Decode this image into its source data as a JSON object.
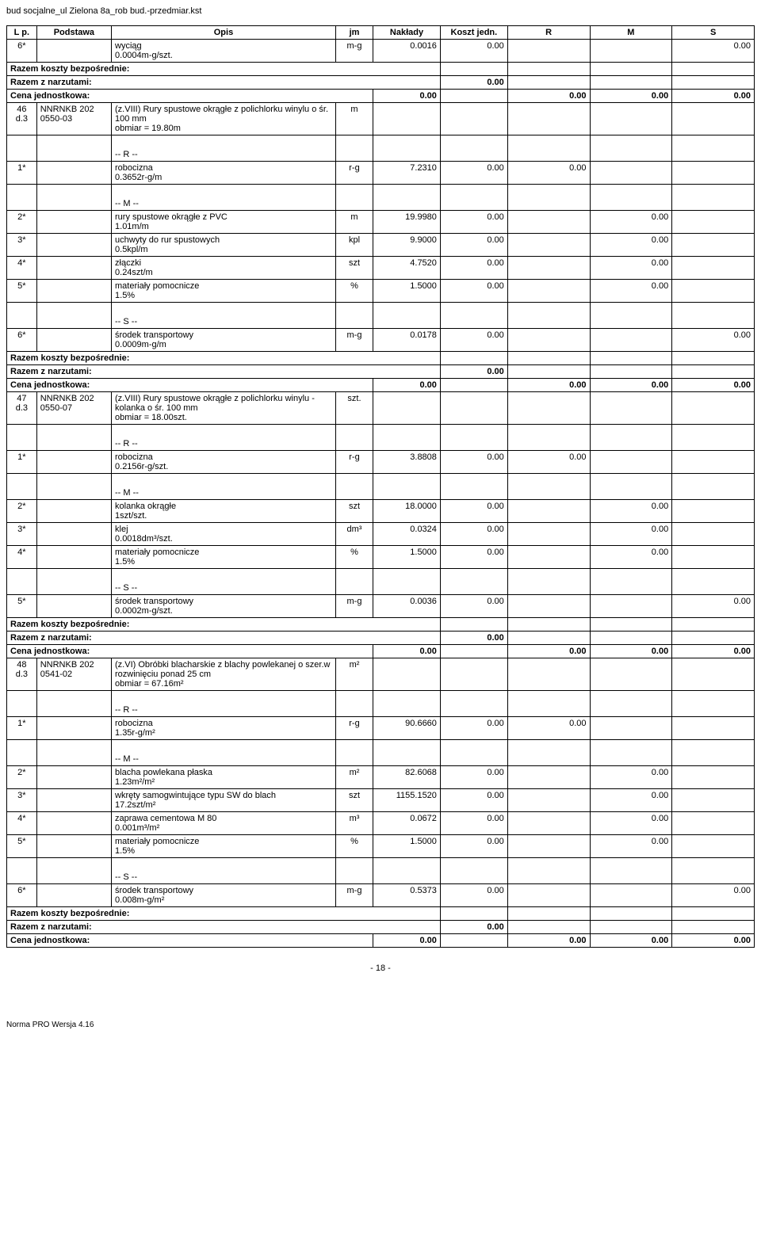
{
  "doc": {
    "title": "bud socjalne_ul Zielona 8a_rob bud.-przedmiar.kst",
    "pageNumber": "- 18 -",
    "footer": "Norma PRO Wersja 4.16"
  },
  "header": {
    "lp": "L p.",
    "podstawa": "Podstawa",
    "opis": "Opis",
    "jm": "jm",
    "naklady": "Nakłady",
    "koszt": "Koszt jedn.",
    "r": "R",
    "m": "M",
    "s": "S"
  },
  "labels": {
    "razemBezp": "Razem koszty bezpośrednie:",
    "razemNarz": "Razem z narzutami:",
    "cenaJedn": "Cena jednostkowa:",
    "rr": "-- R --",
    "mm": "-- M --",
    "ss": "-- S --"
  },
  "rows": [
    {
      "t": "data",
      "lp": "6*",
      "pod": "",
      "opis": "wyciąg",
      "opis2": "0.0004m-g/szt.",
      "jm": "m-g",
      "nak": "0.0016",
      "koszt": "0.00",
      "r": "",
      "m": "",
      "s": "0.00"
    },
    {
      "t": "sum1"
    },
    {
      "t": "sum2",
      "narz": "0.00"
    },
    {
      "t": "sum3",
      "cena": "0.00",
      "r": "0.00",
      "m": "0.00",
      "s": "0.00"
    },
    {
      "t": "head",
      "lp": "46 d.3",
      "pod": "NNRNKB 202 0550-03",
      "opis": "(z.VIII) Rury spustowe okrągłe z polichlorku winylu o śr. 100 mm",
      "obm": "obmiar = 19.80m",
      "jm": "m"
    },
    {
      "t": "sec",
      "lbl": "rr"
    },
    {
      "t": "data",
      "lp": "1*",
      "opis": "robocizna",
      "opis2": "0.3652r-g/m",
      "jm": "r-g",
      "nak": "7.2310",
      "koszt": "0.00",
      "r": "0.00"
    },
    {
      "t": "sec",
      "lbl": "mm"
    },
    {
      "t": "data",
      "lp": "2*",
      "opis": "rury spustowe okrągłe z PVC",
      "opis2": "1.01m/m",
      "jm": "m",
      "nak": "19.9980",
      "koszt": "0.00",
      "m": "0.00"
    },
    {
      "t": "data",
      "lp": "3*",
      "opis": "uchwyty do rur spustowych",
      "opis2": "0.5kpl/m",
      "jm": "kpl",
      "nak": "9.9000",
      "koszt": "0.00",
      "m": "0.00"
    },
    {
      "t": "data",
      "lp": "4*",
      "opis": "złączki",
      "opis2": "0.24szt/m",
      "jm": "szt",
      "nak": "4.7520",
      "koszt": "0.00",
      "m": "0.00"
    },
    {
      "t": "data",
      "lp": "5*",
      "opis": "materiały pomocnicze",
      "opis2": "1.5%",
      "jm": "%",
      "nak": "1.5000",
      "koszt": "0.00",
      "m": "0.00"
    },
    {
      "t": "sec",
      "lbl": "ss"
    },
    {
      "t": "data",
      "lp": "6*",
      "opis": "środek transportowy",
      "opis2": "0.0009m-g/m",
      "jm": "m-g",
      "nak": "0.0178",
      "koszt": "0.00",
      "s": "0.00"
    },
    {
      "t": "sum1"
    },
    {
      "t": "sum2",
      "narz": "0.00"
    },
    {
      "t": "sum3",
      "cena": "0.00",
      "r": "0.00",
      "m": "0.00",
      "s": "0.00"
    },
    {
      "t": "head",
      "lp": "47 d.3",
      "pod": "NNRNKB 202 0550-07",
      "opis": "(z.VIII) Rury spustowe okrągłe z polichlorku winylu - kolanka o śr. 100 mm",
      "obm": "obmiar = 18.00szt.",
      "jm": "szt."
    },
    {
      "t": "sec",
      "lbl": "rr"
    },
    {
      "t": "data",
      "lp": "1*",
      "opis": "robocizna",
      "opis2": "0.2156r-g/szt.",
      "jm": "r-g",
      "nak": "3.8808",
      "koszt": "0.00",
      "r": "0.00"
    },
    {
      "t": "sec",
      "lbl": "mm"
    },
    {
      "t": "data",
      "lp": "2*",
      "opis": "kolanka okrągłe",
      "opis2": "1szt/szt.",
      "jm": "szt",
      "nak": "18.0000",
      "koszt": "0.00",
      "m": "0.00"
    },
    {
      "t": "data",
      "lp": "3*",
      "opis": "klej",
      "opis2": "0.0018dm³/szt.",
      "jm": "dm³",
      "nak": "0.0324",
      "koszt": "0.00",
      "m": "0.00"
    },
    {
      "t": "data",
      "lp": "4*",
      "opis": "materiały pomocnicze",
      "opis2": "1.5%",
      "jm": "%",
      "nak": "1.5000",
      "koszt": "0.00",
      "m": "0.00"
    },
    {
      "t": "sec",
      "lbl": "ss"
    },
    {
      "t": "data",
      "lp": "5*",
      "opis": "środek transportowy",
      "opis2": "0.0002m-g/szt.",
      "jm": "m-g",
      "nak": "0.0036",
      "koszt": "0.00",
      "s": "0.00"
    },
    {
      "t": "sum1"
    },
    {
      "t": "sum2",
      "narz": "0.00"
    },
    {
      "t": "sum3",
      "cena": "0.00",
      "r": "0.00",
      "m": "0.00",
      "s": "0.00"
    },
    {
      "t": "head",
      "lp": "48 d.3",
      "pod": "NNRNKB 202 0541-02",
      "opis": "(z.VI) Obróbki blacharskie z blachy powlekanej o szer.w rozwinięciu ponad 25 cm",
      "obm": "obmiar = 67.16m²",
      "jm": "m²"
    },
    {
      "t": "sec",
      "lbl": "rr"
    },
    {
      "t": "data",
      "lp": "1*",
      "opis": "robocizna",
      "opis2": "1.35r-g/m²",
      "jm": "r-g",
      "nak": "90.6660",
      "koszt": "0.00",
      "r": "0.00"
    },
    {
      "t": "sec",
      "lbl": "mm"
    },
    {
      "t": "data",
      "lp": "2*",
      "opis": "blacha powlekana płaska",
      "opis2": "1.23m²/m²",
      "jm": "m²",
      "nak": "82.6068",
      "koszt": "0.00",
      "m": "0.00"
    },
    {
      "t": "data",
      "lp": "3*",
      "opis": "wkręty samogwintujące typu SW do blach",
      "opis2": "17.2szt/m²",
      "jm": "szt",
      "nak": "1155.1520",
      "koszt": "0.00",
      "m": "0.00"
    },
    {
      "t": "data",
      "lp": "4*",
      "opis": "zaprawa cementowa M 80",
      "opis2": "0.001m³/m²",
      "jm": "m³",
      "nak": "0.0672",
      "koszt": "0.00",
      "m": "0.00"
    },
    {
      "t": "data",
      "lp": "5*",
      "opis": "materiały pomocnicze",
      "opis2": "1.5%",
      "jm": "%",
      "nak": "1.5000",
      "koszt": "0.00",
      "m": "0.00"
    },
    {
      "t": "sec",
      "lbl": "ss"
    },
    {
      "t": "data",
      "lp": "6*",
      "opis": "środek transportowy",
      "opis2": "0.008m-g/m²",
      "jm": "m-g",
      "nak": "0.5373",
      "koszt": "0.00",
      "s": "0.00"
    },
    {
      "t": "sum1"
    },
    {
      "t": "sum2",
      "narz": "0.00"
    },
    {
      "t": "sum3",
      "cena": "0.00",
      "r": "0.00",
      "m": "0.00",
      "s": "0.00"
    }
  ]
}
